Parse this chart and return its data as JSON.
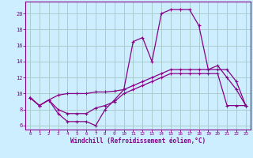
{
  "xlabel": "Windchill (Refroidissement éolien,°C)",
  "bg_color": "#cceeff",
  "grid_color": "#aacccc",
  "line_color": "#880088",
  "xlim": [
    -0.5,
    23.5
  ],
  "ylim": [
    5.5,
    21.5
  ],
  "xticks": [
    0,
    1,
    2,
    3,
    4,
    5,
    6,
    7,
    8,
    9,
    10,
    11,
    12,
    13,
    14,
    15,
    16,
    17,
    18,
    19,
    20,
    21,
    22,
    23
  ],
  "yticks": [
    6,
    8,
    10,
    12,
    14,
    16,
    18,
    20
  ],
  "line1_x": [
    0,
    1,
    2,
    3,
    4,
    5,
    6,
    7,
    8,
    9,
    10,
    11,
    12,
    13,
    14,
    15,
    16,
    17,
    18,
    19,
    20,
    21,
    22,
    23
  ],
  "line1_y": [
    9.5,
    8.5,
    9.2,
    8.0,
    7.5,
    7.5,
    7.5,
    8.2,
    8.5,
    9.0,
    10.0,
    10.5,
    11.0,
    11.5,
    12.0,
    12.5,
    12.5,
    12.5,
    12.5,
    12.5,
    12.5,
    8.5,
    8.5,
    8.5
  ],
  "line2_x": [
    0,
    1,
    2,
    3,
    4,
    5,
    6,
    7,
    8,
    9,
    10,
    11,
    12,
    13,
    14,
    15,
    16,
    17,
    18,
    19,
    20,
    21,
    22,
    23
  ],
  "line2_y": [
    9.5,
    8.5,
    9.2,
    9.8,
    10.0,
    10.0,
    10.0,
    10.2,
    10.2,
    10.3,
    10.5,
    11.0,
    11.5,
    12.0,
    12.5,
    13.0,
    13.0,
    13.0,
    13.0,
    13.0,
    13.0,
    13.0,
    11.5,
    8.5
  ],
  "line3_x": [
    0,
    1,
    2,
    3,
    4,
    5,
    6,
    7,
    8,
    9,
    10,
    11,
    12,
    13,
    14,
    15,
    16,
    17,
    18,
    19,
    20,
    21,
    22,
    23
  ],
  "line3_y": [
    9.5,
    8.5,
    9.2,
    7.5,
    6.5,
    6.5,
    6.5,
    6.0,
    8.0,
    9.2,
    10.5,
    16.5,
    17.0,
    14.0,
    20.0,
    20.5,
    20.5,
    20.5,
    18.5,
    13.0,
    13.5,
    12.0,
    10.5,
    8.5
  ]
}
